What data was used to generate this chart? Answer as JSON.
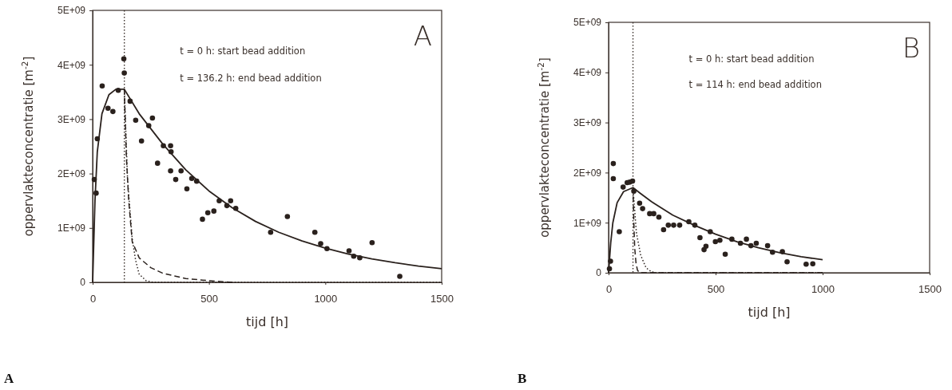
{
  "chart_data": [
    {
      "type": "scatter",
      "xlabel": "tijd [h]",
      "ylabel": "oppervlakteconcentratie [m$^{-2}$]",
      "xlim": [
        0,
        1500
      ],
      "xticks": [
        0,
        500,
        1000,
        1500
      ],
      "ylim": [
        0,
        5000000000.0
      ],
      "yticks": [
        0,
        {
          "value": 1000000000.0,
          "label": "1E+09"
        },
        {
          "value": 2000000000.0,
          "label": "2E+09"
        },
        {
          "value": 3000000000.0,
          "label": "3E+09"
        },
        {
          "value": 4000000000.0,
          "label": "4E+09"
        },
        {
          "value": 5000000000.0,
          "label": "5E+09"
        }
      ],
      "ref_lines": [
        {
          "axis": "x",
          "value": 136.2,
          "line_style": "dotted"
        }
      ],
      "annotations": [
        "A",
        "t = 0 h: start bead addition",
        "t = 136.2 h: end bead addition",
        "A"
      ],
      "series": [
        {
          "type": "scatter",
          "color": "#2a211d",
          "marker": "circle",
          "x": [
            7,
            15,
            20,
            41,
            66,
            87,
            110,
            134,
            136,
            161,
            185,
            210,
            241,
            257,
            279,
            304,
            335,
            337,
            335,
            357,
            380,
            405,
            426,
            447,
            472,
            495,
            521,
            544,
            577,
            593,
            615,
            765,
            837,
            955,
            980,
            1007,
            1102,
            1122,
            1148,
            1201,
            1320
          ],
          "values": [
            1890000000.0,
            1640000000.0,
            2640000000.0,
            3610000000.0,
            3200000000.0,
            3140000000.0,
            3530000000.0,
            4110000000.0,
            3850000000.0,
            3330000000.0,
            2980000000.0,
            2600000000.0,
            2880000000.0,
            3020000000.0,
            2190000000.0,
            2510000000.0,
            2510000000.0,
            2400000000.0,
            2050000000.0,
            1890000000.0,
            2050000000.0,
            1720000000.0,
            1910000000.0,
            1860000000.0,
            1160000000.0,
            1280000000.0,
            1310000000.0,
            1500000000.0,
            1410000000.0,
            1500000000.0,
            1360000000.0,
            920000000.0,
            1210000000.0,
            920000000.0,
            710000000.0,
            620000000.0,
            580000000.0,
            480000000.0,
            450000000.0,
            730000000.0,
            110000000.0
          ]
        },
        {
          "type": "line",
          "color": "#2a211d",
          "line_style": "solid",
          "x": [
            0,
            10,
            20,
            40,
            70,
            100,
            136,
            200,
            300,
            400,
            500,
            600,
            700,
            800,
            900,
            1000,
            1100,
            1200,
            1300,
            1400,
            1500
          ],
          "values": [
            0,
            1500000000.0,
            2400000000.0,
            3100000000.0,
            3450000000.0,
            3550000000.0,
            3550000000.0,
            3100000000.0,
            2550000000.0,
            2070000000.0,
            1680000000.0,
            1370000000.0,
            1120000000.0,
            920000000.0,
            760000000.0,
            630000000.0,
            520000000.0,
            430000000.0,
            360000000.0,
            300000000.0,
            250000000.0
          ]
        },
        {
          "type": "line",
          "color": "#2a211d",
          "line_style": "dashed",
          "x": [
            136,
            145,
            155,
            170,
            200,
            250,
            300,
            400,
            500,
            600
          ],
          "values": [
            3550000000.0,
            2300000000.0,
            1500000000.0,
            750000000.0,
            450000000.0,
            270000000.0,
            170000000.0,
            70000000.0,
            30000000.0,
            0
          ]
        },
        {
          "type": "line",
          "color": "#2a211d",
          "line_style": "dotted",
          "x": [
            136,
            150,
            170,
            185,
            200,
            230,
            260,
            1500
          ],
          "values": [
            3550000000.0,
            1900000000.0,
            800000000.0,
            400000000.0,
            150000000.0,
            30000000.0,
            0,
            0
          ]
        }
      ]
    },
    {
      "type": "scatter",
      "xlabel": "tijd [h]",
      "ylabel": "oppervlakteconcentratie [m$^{-2}$]",
      "xlim": [
        0,
        1500
      ],
      "xticks": [
        0,
        500,
        1000,
        1500
      ],
      "ylim": [
        0,
        5000000000.0
      ],
      "yticks": [
        0,
        {
          "value": 1000000000.0,
          "label": "1E+09"
        },
        {
          "value": 2000000000.0,
          "label": "2E+09"
        },
        {
          "value": 3000000000.0,
          "label": "3E+09"
        },
        {
          "value": 4000000000.0,
          "label": "4E+09"
        },
        {
          "value": 5000000000.0,
          "label": "5E+09"
        }
      ],
      "ref_lines": [
        {
          "axis": "x",
          "value": 114,
          "line_style": "dotted"
        }
      ],
      "annotations": [
        "B",
        "t = 0 h: start bead addition",
        "t = 114 h: end bead addition",
        "B"
      ],
      "series": [
        {
          "type": "scatter",
          "color": "#2a211d",
          "marker": "circle",
          "x": [
            4,
            9,
            22,
            22,
            50,
            68,
            87,
            99,
            112,
            118,
            145,
            159,
            192,
            211,
            235,
            257,
            279,
            304,
            332,
            375,
            403,
            427,
            446,
            455,
            475,
            499,
            520,
            545,
            576,
            616,
            644,
            665,
            690,
            743,
            766,
            812,
            834,
            923,
            954
          ],
          "values": [
            80000000.0,
            230000000.0,
            2180000000.0,
            1880000000.0,
            820000000.0,
            1710000000.0,
            1800000000.0,
            1810000000.0,
            1830000000.0,
            1630000000.0,
            1390000000.0,
            1280000000.0,
            1180000000.0,
            1180000000.0,
            1110000000.0,
            860000000.0,
            950000000.0,
            950000000.0,
            950000000.0,
            1020000000.0,
            950000000.0,
            700000000.0,
            460000000.0,
            530000000.0,
            820000000.0,
            620000000.0,
            650000000.0,
            370000000.0,
            670000000.0,
            590000000.0,
            670000000.0,
            540000000.0,
            590000000.0,
            540000000.0,
            410000000.0,
            420000000.0,
            220000000.0,
            170000000.0,
            180000000.0
          ]
        },
        {
          "type": "line",
          "color": "#2a211d",
          "line_style": "solid",
          "x": [
            0,
            10,
            20,
            40,
            70,
            114,
            150,
            200,
            300,
            400,
            500,
            600,
            700,
            800,
            900,
            1000
          ],
          "values": [
            0,
            600000000.0,
            1000000000.0,
            1400000000.0,
            1620000000.0,
            1700000000.0,
            1580000000.0,
            1420000000.0,
            1150000000.0,
            950000000.0,
            770000000.0,
            620000000.0,
            500000000.0,
            400000000.0,
            320000000.0,
            260000000.0
          ]
        },
        {
          "type": "line",
          "color": "#2a211d",
          "line_style": "dashed",
          "x": [
            114,
            118,
            122,
            128,
            135,
            145,
            500,
            1000
          ],
          "values": [
            1700000000.0,
            1000000000.0,
            500000000.0,
            200000000.0,
            50000000.0,
            0,
            0,
            0
          ]
        },
        {
          "type": "line",
          "color": "#2a211d",
          "line_style": "dotted",
          "x": [
            114,
            130,
            150,
            175,
            200,
            220,
            1000
          ],
          "values": [
            1700000000.0,
            800000000.0,
            350000000.0,
            100000000.0,
            20000000.0,
            0,
            0
          ]
        }
      ]
    }
  ]
}
